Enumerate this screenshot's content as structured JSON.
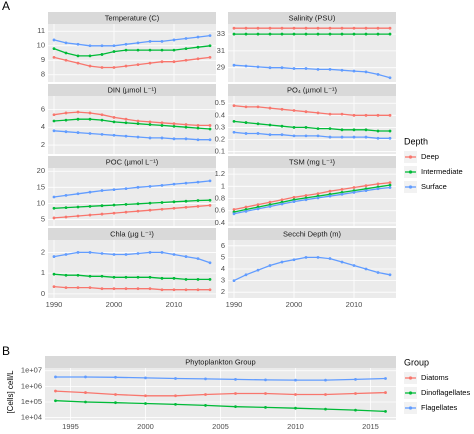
{
  "chart_data": [
    {
      "type": "facet-line",
      "label": "A",
      "x": [
        1990,
        1992,
        1994,
        1996,
        1998,
        2000,
        2002,
        2004,
        2006,
        2008,
        2010,
        2012,
        2014,
        2016
      ],
      "xlim": [
        1989,
        2017
      ],
      "xticks": [
        1990,
        2000,
        2010
      ],
      "legend": {
        "title": "Depth",
        "items": [
          {
            "name": "Deep",
            "color": "#f8766d"
          },
          {
            "name": "Intermediate",
            "color": "#00ba38"
          },
          {
            "name": "Surface",
            "color": "#619cff"
          }
        ]
      },
      "facets": [
        {
          "title": "Temperature (C)",
          "ylim": [
            7.5,
            11.5
          ],
          "yticks": [
            8,
            9,
            10,
            11
          ],
          "series": [
            {
              "color": "#f8766d",
              "values": [
                9.2,
                9.0,
                8.8,
                8.6,
                8.5,
                8.5,
                8.6,
                8.7,
                8.8,
                8.9,
                8.9,
                9.0,
                9.1,
                9.2
              ]
            },
            {
              "color": "#00ba38",
              "values": [
                9.8,
                9.5,
                9.3,
                9.3,
                9.4,
                9.6,
                9.7,
                9.7,
                9.7,
                9.7,
                9.7,
                9.8,
                9.9,
                10.0
              ]
            },
            {
              "color": "#619cff",
              "values": [
                10.4,
                10.2,
                10.1,
                10.0,
                10.0,
                10.0,
                10.1,
                10.2,
                10.3,
                10.3,
                10.4,
                10.5,
                10.6,
                10.7
              ]
            }
          ]
        },
        {
          "title": "Salinity (PSU)",
          "ylim": [
            27.3,
            34.2
          ],
          "yticks": [
            29,
            31,
            33
          ],
          "series": [
            {
              "color": "#f8766d",
              "values": [
                33.7,
                33.7,
                33.7,
                33.7,
                33.7,
                33.7,
                33.7,
                33.7,
                33.7,
                33.7,
                33.7,
                33.7,
                33.7,
                33.7
              ]
            },
            {
              "color": "#00ba38",
              "values": [
                33.0,
                33.0,
                33.0,
                33.0,
                33.0,
                33.0,
                33.0,
                33.0,
                33.0,
                33.0,
                33.0,
                33.0,
                33.0,
                33.0
              ]
            },
            {
              "color": "#619cff",
              "values": [
                29.3,
                29.2,
                29.1,
                29.0,
                29.0,
                28.9,
                28.9,
                28.8,
                28.8,
                28.7,
                28.6,
                28.5,
                28.2,
                27.8
              ]
            }
          ]
        },
        {
          "title": "DIN (µmol L⁻¹)",
          "ylim": [
            1,
            7.5
          ],
          "yticks": [
            2,
            4,
            6
          ],
          "series": [
            {
              "color": "#f8766d",
              "values": [
                5.4,
                5.6,
                5.7,
                5.6,
                5.4,
                5.1,
                4.9,
                4.7,
                4.6,
                4.5,
                4.4,
                4.3,
                4.2,
                4.2
              ]
            },
            {
              "color": "#00ba38",
              "values": [
                4.7,
                4.8,
                4.9,
                4.9,
                4.8,
                4.6,
                4.5,
                4.4,
                4.3,
                4.2,
                4.1,
                4.0,
                3.9,
                3.8
              ]
            },
            {
              "color": "#619cff",
              "values": [
                3.6,
                3.5,
                3.4,
                3.3,
                3.2,
                3.1,
                3.0,
                2.9,
                2.8,
                2.8,
                2.7,
                2.7,
                2.6,
                2.6
              ]
            }
          ]
        },
        {
          "title": "PO₄ (µmol L⁻¹)",
          "ylim": [
            0.08,
            0.56
          ],
          "yticks": [
            0.1,
            0.2,
            0.3,
            0.4,
            0.5
          ],
          "series": [
            {
              "color": "#f8766d",
              "values": [
                0.48,
                0.47,
                0.47,
                0.46,
                0.45,
                0.44,
                0.43,
                0.42,
                0.41,
                0.41,
                0.4,
                0.4,
                0.4,
                0.4
              ]
            },
            {
              "color": "#00ba38",
              "values": [
                0.35,
                0.34,
                0.33,
                0.32,
                0.31,
                0.3,
                0.3,
                0.29,
                0.29,
                0.28,
                0.28,
                0.28,
                0.27,
                0.27
              ]
            },
            {
              "color": "#619cff",
              "values": [
                0.26,
                0.25,
                0.25,
                0.24,
                0.24,
                0.23,
                0.23,
                0.23,
                0.22,
                0.22,
                0.22,
                0.22,
                0.21,
                0.21
              ]
            }
          ]
        },
        {
          "title": "POC (µmol L⁻¹)",
          "ylim": [
            3,
            21
          ],
          "yticks": [
            5,
            10,
            15,
            20
          ],
          "series": [
            {
              "color": "#f8766d",
              "values": [
                5.5,
                5.8,
                6.1,
                6.4,
                6.7,
                7,
                7.3,
                7.6,
                7.9,
                8.2,
                8.5,
                8.8,
                9.1,
                9.4
              ]
            },
            {
              "color": "#00ba38",
              "values": [
                8.5,
                8.7,
                8.9,
                9.1,
                9.3,
                9.5,
                9.7,
                9.9,
                10.1,
                10.3,
                10.5,
                10.7,
                10.9,
                11
              ]
            },
            {
              "color": "#619cff",
              "values": [
                12,
                12.5,
                13,
                13.5,
                14,
                14.3,
                14.6,
                15,
                15.3,
                15.6,
                16,
                16.3,
                16.6,
                17
              ]
            }
          ]
        },
        {
          "title": "TSM (mg L⁻¹)",
          "ylim": [
            0.35,
            1.3
          ],
          "yticks": [
            0.4,
            0.6,
            0.8,
            1,
            1.2
          ],
          "series": [
            {
              "color": "#f8766d",
              "values": [
                0.62,
                0.66,
                0.7,
                0.74,
                0.78,
                0.82,
                0.85,
                0.88,
                0.92,
                0.95,
                0.98,
                1.01,
                1.04,
                1.06
              ]
            },
            {
              "color": "#00ba38",
              "values": [
                0.58,
                0.62,
                0.66,
                0.7,
                0.74,
                0.78,
                0.81,
                0.84,
                0.87,
                0.9,
                0.93,
                0.96,
                0.99,
                1.02
              ]
            },
            {
              "color": "#619cff",
              "values": [
                0.55,
                0.59,
                0.63,
                0.67,
                0.71,
                0.75,
                0.78,
                0.81,
                0.84,
                0.87,
                0.9,
                0.93,
                0.96,
                0.98
              ]
            }
          ]
        },
        {
          "title": "Chla (µg L⁻¹)",
          "ylim": [
            -0.2,
            2.6
          ],
          "yticks": [
            0,
            1,
            2
          ],
          "series": [
            {
              "color": "#f8766d",
              "values": [
                0.35,
                0.3,
                0.3,
                0.3,
                0.25,
                0.25,
                0.25,
                0.25,
                0.25,
                0.2,
                0.2,
                0.2,
                0.2,
                0.2
              ]
            },
            {
              "color": "#00ba38",
              "values": [
                0.95,
                0.9,
                0.9,
                0.85,
                0.85,
                0.8,
                0.8,
                0.8,
                0.8,
                0.75,
                0.75,
                0.7,
                0.7,
                0.7
              ]
            },
            {
              "color": "#619cff",
              "values": [
                1.8,
                1.9,
                2.0,
                2.0,
                1.95,
                1.9,
                1.9,
                1.95,
                2.0,
                2.0,
                1.9,
                1.8,
                1.7,
                1.5
              ]
            }
          ]
        },
        {
          "title": "Secchi Depth (m)",
          "ylim": [
            1.5,
            6.5
          ],
          "yticks": [
            2,
            3,
            4,
            5,
            6
          ],
          "series": [
            {
              "color": "#619cff",
              "values": [
                3.0,
                3.5,
                3.9,
                4.3,
                4.6,
                4.8,
                5.0,
                5.0,
                4.9,
                4.6,
                4.3,
                4.0,
                3.7,
                3.5
              ]
            }
          ]
        }
      ]
    },
    {
      "type": "line",
      "label": "B",
      "title": "Phytoplankton Group",
      "y_label": "[Cells] cell/L",
      "log_y": true,
      "legend_title": "Group",
      "x": [
        1994,
        1996,
        1998,
        2000,
        2002,
        2004,
        2006,
        2008,
        2010,
        2012,
        2014,
        2016
      ],
      "xlim": [
        1993.3,
        2016.7
      ],
      "xticks": [
        1995,
        2000,
        2005,
        2010,
        2015
      ],
      "ylim": [
        7000,
        15000000
      ],
      "yticks": [
        {
          "value": 10000,
          "label": "1e+04"
        },
        {
          "value": 100000,
          "label": "1e+05"
        },
        {
          "value": 1000000,
          "label": "1e+06"
        },
        {
          "value": 10000000,
          "label": "1e+07"
        }
      ],
      "series": [
        {
          "name": "Diatoms",
          "color": "#f8766d",
          "values": [
            500000,
            400000,
            300000,
            250000,
            250000,
            300000,
            350000,
            350000,
            300000,
            300000,
            350000,
            400000
          ]
        },
        {
          "name": "Dinoflagellates",
          "color": "#00ba38",
          "values": [
            120000,
            100000,
            90000,
            80000,
            70000,
            60000,
            50000,
            45000,
            40000,
            35000,
            30000,
            25000
          ]
        },
        {
          "name": "Flagellates",
          "color": "#619cff",
          "values": [
            4000000,
            4000000,
            3800000,
            3500000,
            3200000,
            3000000,
            2800000,
            2600000,
            2500000,
            2500000,
            2800000,
            3200000
          ]
        }
      ]
    }
  ]
}
